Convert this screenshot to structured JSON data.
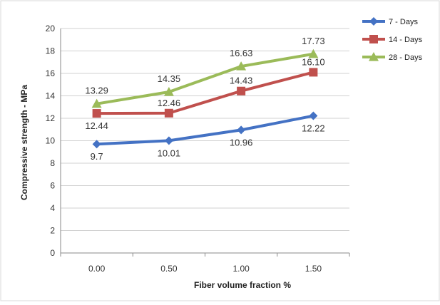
{
  "chart_data": {
    "type": "line",
    "categories": [
      "0.00",
      "0.50",
      "1.00",
      "1.50"
    ],
    "xlabel": "Fiber volume fraction %",
    "ylabel": "Compressive strength - MPa",
    "ylim": [
      0,
      20
    ],
    "yticks": [
      "0",
      "2",
      "4",
      "6",
      "8",
      "10",
      "12",
      "14",
      "16",
      "18",
      "20"
    ],
    "grid": true,
    "legend_position": "right",
    "series": [
      {
        "name": "7 - Days",
        "color": "#4472C4",
        "marker": "diamond",
        "values": [
          9.7,
          10.01,
          10.96,
          12.22
        ],
        "labels": [
          "9.7",
          "10.01",
          "10.96",
          "12.22"
        ]
      },
      {
        "name": "14 - Days",
        "color": "#C0504D",
        "marker": "square",
        "values": [
          12.44,
          12.46,
          14.43,
          16.1
        ],
        "labels": [
          "12.44",
          "12.46",
          "14.43",
          "16.10"
        ]
      },
      {
        "name": "28 - Days",
        "color": "#9BBB59",
        "marker": "triangle",
        "values": [
          13.29,
          14.35,
          16.63,
          17.73
        ],
        "labels": [
          "13.29",
          "14.35",
          "16.63",
          "17.73"
        ]
      }
    ]
  }
}
